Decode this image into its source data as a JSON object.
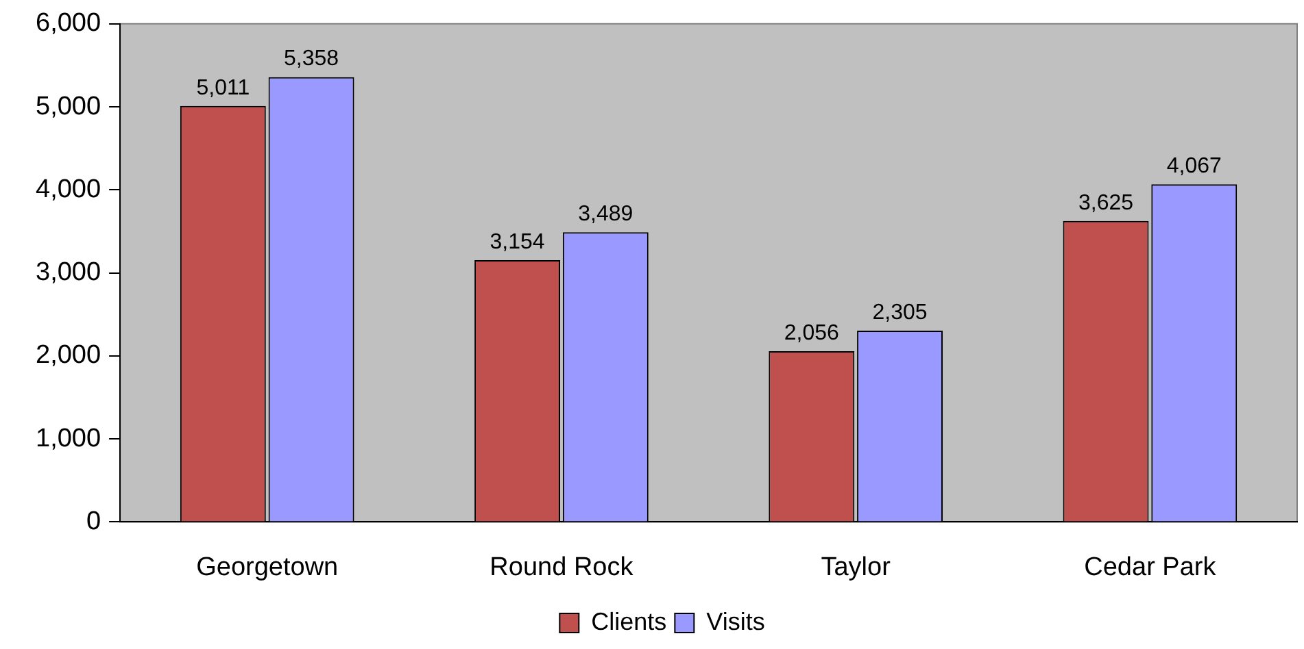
{
  "chart_data": {
    "type": "bar",
    "categories": [
      "Georgetown",
      "Round Rock",
      "Taylor",
      "Cedar Park"
    ],
    "series": [
      {
        "name": "Clients",
        "color": "#c0504d",
        "values": [
          5011,
          3154,
          2056,
          3625
        ],
        "value_labels": [
          "5,011",
          "3,154",
          "2,056",
          "3,625"
        ]
      },
      {
        "name": "Visits",
        "color": "#9999ff",
        "values": [
          5358,
          3489,
          2305,
          4067
        ],
        "value_labels": [
          "5,358",
          "3,489",
          "2,305",
          "4,067"
        ]
      }
    ],
    "ylim": [
      0,
      6000
    ],
    "yticks": [
      {
        "value": 0,
        "label": "0"
      },
      {
        "value": 1000,
        "label": "1,000"
      },
      {
        "value": 2000,
        "label": "2,000"
      },
      {
        "value": 3000,
        "label": "3,000"
      },
      {
        "value": 4000,
        "label": "4,000"
      },
      {
        "value": 5000,
        "label": "5,000"
      },
      {
        "value": 6000,
        "label": "6,000"
      }
    ],
    "grid": false,
    "legend": "bottom"
  }
}
